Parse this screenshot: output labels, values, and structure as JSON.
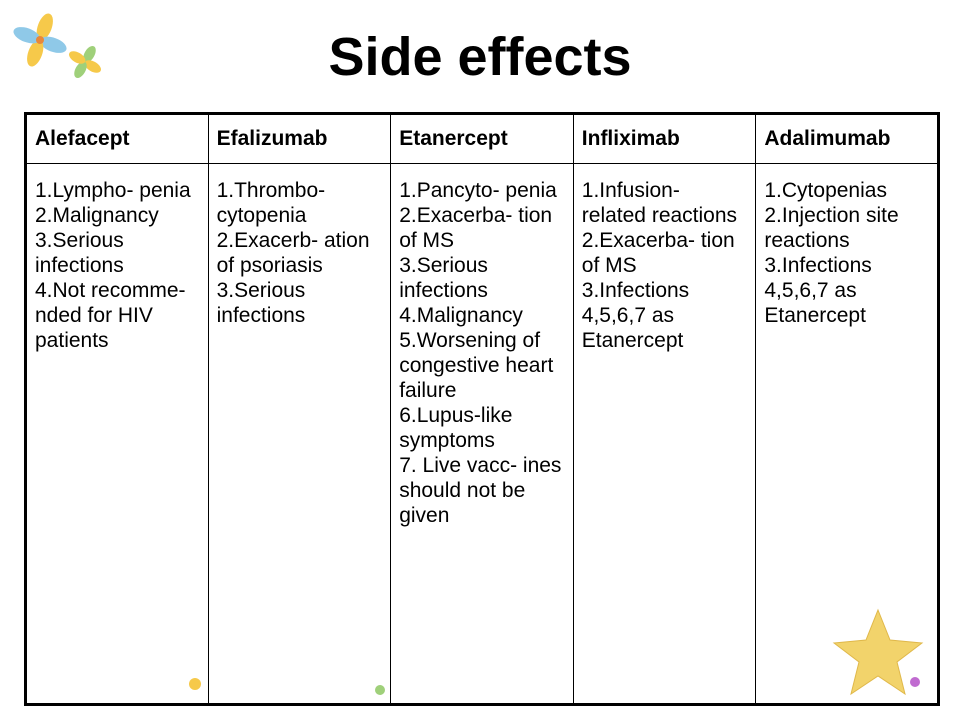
{
  "title": "Side effects",
  "table": {
    "header": [
      "Alefacept",
      "Efalizumab",
      "Etanercept",
      "Infliximab",
      "Adalimumab"
    ],
    "rows": [
      [
        [
          "1.Lympho-\npenia",
          "2.Malignancy",
          "3.Serious infections",
          "4.Not recomme-\nnded for HIV patients"
        ],
        [
          "1.Thrombo-\ncytopenia",
          "2.Exacerb-\nation of psoriasis",
          "3.Serious infections"
        ],
        [
          "1.Pancyto-\npenia",
          "2.Exacerba-\ntion of MS",
          "3.Serious infections",
          "4.Malignancy",
          "5.Worsening of congestive heart failure",
          "6.Lupus-like symptoms",
          "7. Live vacc-\nines should not be given"
        ],
        [
          "1.Infusion-\nrelated reactions",
          "2.Exacerba-\ntion of MS",
          "3.Infections",
          "4,5,6,7 as Etanercept"
        ],
        [
          "1.Cytopenias",
          "2.Injection site reactions",
          "3.Infections",
          "4,5,6,7 as Etanercept"
        ]
      ]
    ]
  }
}
